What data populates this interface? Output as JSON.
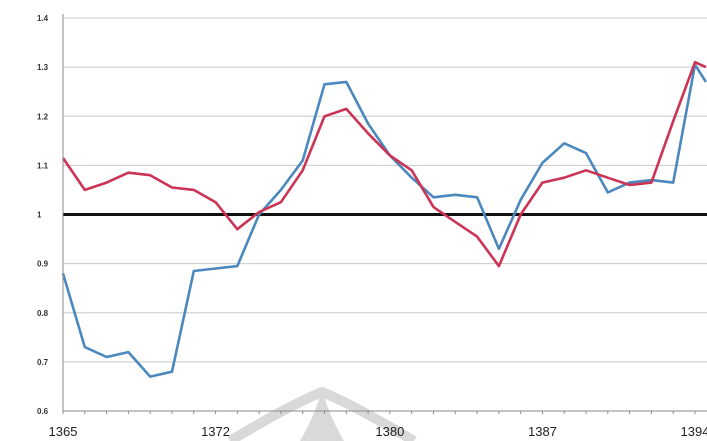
{
  "chart_data": {
    "type": "line",
    "title": "",
    "xlabel": "",
    "ylabel": "",
    "xlim": [
      1365,
      1394
    ],
    "ylim": [
      0.6,
      1.4
    ],
    "grid": true,
    "legend": "none",
    "y_ticks": [
      "0.6",
      "0.7",
      "0.8",
      "0.9",
      "1",
      "1.1",
      "1.2",
      "1.3",
      "1.4"
    ],
    "x_ticks": [
      {
        "value": 1365,
        "label": "1365"
      },
      {
        "value": 1372,
        "label": "1372"
      },
      {
        "value": 1380,
        "label": "1380"
      },
      {
        "value": 1387,
        "label": "1387"
      },
      {
        "value": 1394,
        "label": "1394"
      }
    ],
    "reference_line": {
      "y": 1.0,
      "color": "#111111"
    },
    "x": [
      1365,
      1366,
      1367,
      1368,
      1369,
      1370,
      1371,
      1372,
      1373,
      1374,
      1375,
      1376,
      1377,
      1378,
      1379,
      1380,
      1381,
      1382,
      1383,
      1384,
      1385,
      1386,
      1387,
      1388,
      1389,
      1390,
      1391,
      1392,
      1393,
      1394,
      1394.5
    ],
    "series": [
      {
        "color": "#4b88bd",
        "values": [
          0.88,
          0.73,
          0.71,
          0.72,
          0.67,
          0.68,
          0.885,
          0.89,
          0.895,
          1.0,
          1.05,
          1.11,
          1.265,
          1.27,
          1.185,
          1.12,
          1.075,
          1.035,
          1.04,
          1.035,
          0.93,
          1.03,
          1.105,
          1.145,
          1.125,
          1.045,
          1.065,
          1.07,
          1.065,
          1.305,
          1.27
        ]
      },
      {
        "color": "#cc3355",
        "values": [
          1.115,
          1.05,
          1.065,
          1.085,
          1.08,
          1.055,
          1.05,
          1.025,
          0.97,
          1.005,
          1.025,
          1.09,
          1.2,
          1.215,
          1.165,
          1.12,
          1.09,
          1.015,
          0.985,
          0.955,
          0.895,
          1.0,
          1.065,
          1.075,
          1.09,
          1.075,
          1.06,
          1.065,
          1.19,
          1.31,
          1.3
        ]
      }
    ],
    "watermark": {
      "color": "#d9d9d9"
    }
  }
}
